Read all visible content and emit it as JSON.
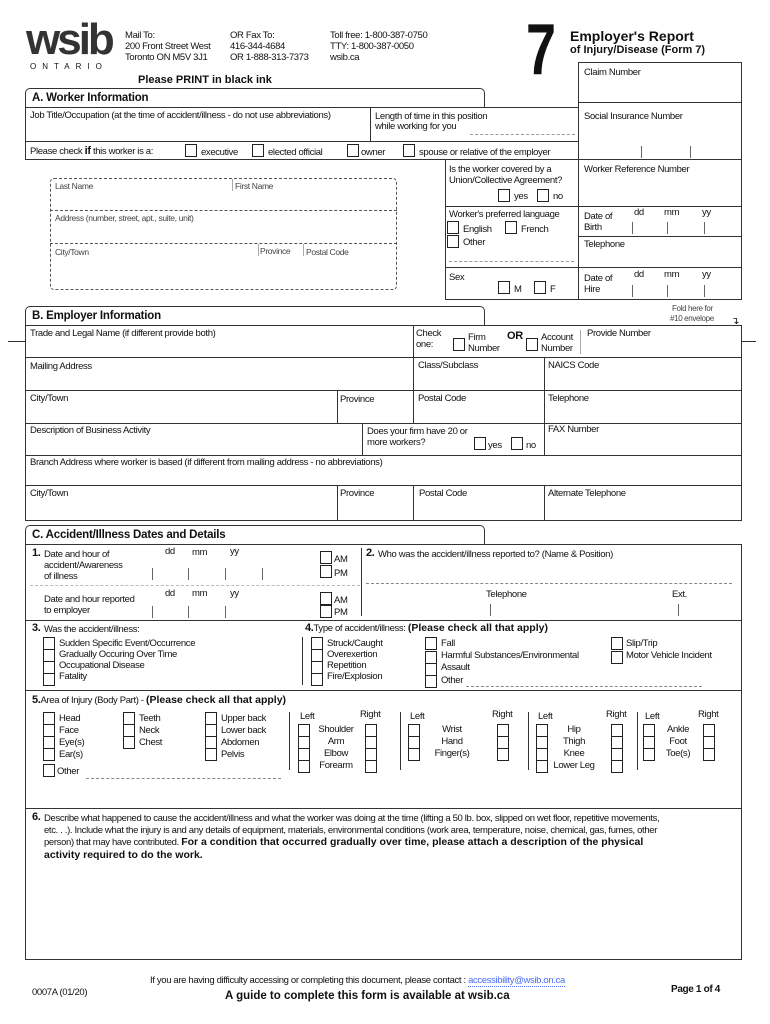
{
  "header": {
    "logo": "wsib",
    "logo_sub": "ONTARIO",
    "mail_to": [
      "Mail To:",
      "200 Front Street West",
      "Toronto ON  M5V 3J1"
    ],
    "fax": [
      "OR Fax To:",
      "416-344-4684",
      "OR 1-888-313-7373"
    ],
    "phone": [
      "Toll free: 1-800-387-0750",
      "TTY: 1-800-387-0050",
      "wsib.ca"
    ],
    "form_number": "7",
    "title": "Employer's Report",
    "subtitle": "of Injury/Disease (Form 7)",
    "claim_number_label": "Claim Number",
    "print_note": "Please PRINT in black ink"
  },
  "section_a": {
    "title": "A. Worker Information",
    "job_title": "Job Title/Occupation (at the time of accident/illness - do not use abbreviations)",
    "length_time": [
      "Length of time in this position",
      "while working for you"
    ],
    "sin": "Social Insurance Number",
    "check_if": "Please check",
    "check_if_bold": "if",
    "check_if_rest": "this worker is a:",
    "worker_types": [
      "executive",
      "elected official",
      "owner",
      "spouse or relative of the employer"
    ],
    "last_name": "Last Name",
    "first_name": "First Name",
    "address": "Address (number, street, apt., suite, unit)",
    "city": "City/Town",
    "province": "Province",
    "postal": "Postal Code",
    "union": [
      "Is the worker covered by a",
      "Union/Collective Agreement?"
    ],
    "yes": "yes",
    "no": "no",
    "worker_ref": "Worker Reference Number",
    "language": "Worker's preferred language",
    "english": "English",
    "french": "French",
    "other": "Other",
    "dob": [
      "Date of",
      "Birth"
    ],
    "dd": "dd",
    "mm": "mm",
    "yy": "yy",
    "telephone": "Telephone",
    "sex": "Sex",
    "m": "M",
    "f": "F",
    "hire": [
      "Date of",
      "Hire"
    ]
  },
  "fold_note": [
    "Fold here for",
    "#10 envelope"
  ],
  "section_b": {
    "title": "B. Employer Information",
    "trade_name": "Trade and Legal Name (if different provide both)",
    "check_one": [
      "Check",
      "one:"
    ],
    "firm_number": [
      "Firm",
      "Number"
    ],
    "or": "OR",
    "account_number": [
      "Account",
      "Number"
    ],
    "provide_number": "Provide Number",
    "mailing_address": "Mailing Address",
    "class": "Class/Subclass",
    "naics": "NAICS Code",
    "city": "City/Town",
    "province": "Province",
    "postal": "Postal Code",
    "telephone": "Telephone",
    "description": "Description of Business Activity",
    "twenty": [
      "Does your firm have 20 or",
      "more workers?"
    ],
    "yes": "yes",
    "no": "no",
    "fax": "FAX Number",
    "branch": "Branch Address where worker is based (if different from mailing address - no abbreviations)",
    "alt_phone": "Alternate Telephone"
  },
  "section_c": {
    "title": "C. Accident/Illness Dates and Details",
    "q1_num": "1.",
    "q1": [
      "Date and hour of",
      "accident/Awareness",
      "of illness"
    ],
    "q1b": [
      "Date and hour reported",
      "to employer"
    ],
    "dd": "dd",
    "mm": "mm",
    "yy": "yy",
    "am": "AM",
    "pm": "PM",
    "q2_num": "2.",
    "q2": "Who was the accident/illness reported to? (Name & Position)",
    "telephone": "Telephone",
    "ext": "Ext.",
    "q3_num": "3.",
    "q3": "Was the accident/illness:",
    "q3_options": [
      "Sudden Specific Event/Occurrence",
      "Gradually Occuring Over Time",
      "Occupational Disease",
      "Fatality"
    ],
    "q4_num": "4.",
    "q4": "Type of accident/illness:",
    "check_all": "(Please check all that apply)",
    "q4_col1": [
      "Struck/Caught",
      "Overexertion",
      "Repetition",
      "Fire/Explosion"
    ],
    "q4_col2": [
      "Fall",
      "Harmful Substances/Environmental",
      "Assault",
      "Other"
    ],
    "q4_col3": [
      "Slip/Trip",
      "Motor Vehicle Incident"
    ],
    "q5_num": "5.",
    "q5": "Area of Injury (Body Part) -",
    "q5_col1": [
      "Head",
      "Face",
      "Eye(s)",
      "Ear(s)"
    ],
    "q5_other": "Other",
    "q5_col2": [
      "Teeth",
      "Neck",
      "Chest"
    ],
    "q5_col3": [
      "Upper back",
      "Lower back",
      "Abdomen",
      "Pelvis"
    ],
    "left": "Left",
    "right": "Right",
    "q5_arm": [
      "Shoulder",
      "Arm",
      "Elbow",
      "Forearm"
    ],
    "q5_hand": [
      "Wrist",
      "Hand",
      "Finger(s)"
    ],
    "q5_leg": [
      "Hip",
      "Thigh",
      "Knee",
      "Lower Leg"
    ],
    "q5_foot": [
      "Ankle",
      "Foot",
      "Toe(s)"
    ],
    "q6_num": "6.",
    "q6": [
      "Describe what happened to cause the accident/illness and what the worker was doing at the time (lifting a 50 lb. box, slipped on wet floor, repetitive movements,",
      "etc. . .). Include what the injury is and any details of equipment, materials, environmental conditions (work area, temperature, noise, chemical, gas,  fumes, other",
      "person) that may have contributed."
    ],
    "q6_bold": [
      "For a condition that occurred gradually over time, please attach a description of the physical",
      "activity required to do the work."
    ]
  },
  "footer": {
    "form_code": "0007A (01/20)",
    "accessibility": "If you are having difficulty accessing or completing this document, please contact :",
    "email": "accessibility@wsib.on.ca",
    "guide": "A guide to complete this form is available at wsib.ca",
    "page": "Page 1 of 4"
  },
  "colors": {
    "ink": "#111111",
    "link": "#4a6cf7",
    "border": "#333333"
  }
}
